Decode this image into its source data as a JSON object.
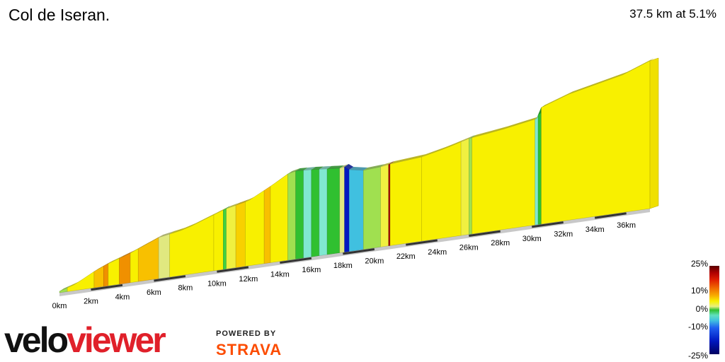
{
  "title": "Col de Iseran.",
  "summary": "37.5 km at 5.1%",
  "chart_data": {
    "type": "area",
    "xlabel": "",
    "ylabel": "",
    "x_unit": "km",
    "xlim": [
      0,
      37.5
    ],
    "x_tick_labels": [
      "0km",
      "2km",
      "4km",
      "6km",
      "8km",
      "10km",
      "12km",
      "14km",
      "16km",
      "18km",
      "20km",
      "22km",
      "24km",
      "26km",
      "28km",
      "30km",
      "32km",
      "34km",
      "36km"
    ],
    "x_tick_values": [
      0,
      2,
      4,
      6,
      8,
      10,
      12,
      14,
      16,
      18,
      20,
      22,
      24,
      26,
      28,
      30,
      32,
      34,
      36
    ],
    "segments": [
      {
        "start": 0.0,
        "end": 0.5,
        "gradient": 1
      },
      {
        "start": 0.5,
        "end": 2.2,
        "gradient": 6
      },
      {
        "start": 2.2,
        "end": 2.8,
        "gradient": 8
      },
      {
        "start": 2.8,
        "end": 3.1,
        "gradient": 10
      },
      {
        "start": 3.1,
        "end": 3.8,
        "gradient": 5
      },
      {
        "start": 3.8,
        "end": 4.5,
        "gradient": 9
      },
      {
        "start": 4.5,
        "end": 5.0,
        "gradient": 6
      },
      {
        "start": 5.0,
        "end": 6.3,
        "gradient": 8
      },
      {
        "start": 6.3,
        "end": 7.0,
        "gradient": 3
      },
      {
        "start": 7.0,
        "end": 9.8,
        "gradient": 5
      },
      {
        "start": 9.8,
        "end": 10.4,
        "gradient": 6
      },
      {
        "start": 10.4,
        "end": 10.6,
        "gradient": -1
      },
      {
        "start": 10.6,
        "end": 11.2,
        "gradient": 4
      },
      {
        "start": 11.2,
        "end": 11.8,
        "gradient": 7
      },
      {
        "start": 11.8,
        "end": 13.0,
        "gradient": 6
      },
      {
        "start": 13.0,
        "end": 13.4,
        "gradient": 8
      },
      {
        "start": 13.4,
        "end": 14.5,
        "gradient": 6
      },
      {
        "start": 14.5,
        "end": 15.0,
        "gradient": 2
      },
      {
        "start": 15.0,
        "end": 15.5,
        "gradient": 0
      },
      {
        "start": 15.5,
        "end": 16.0,
        "gradient": -4
      },
      {
        "start": 16.0,
        "end": 16.5,
        "gradient": 0
      },
      {
        "start": 16.5,
        "end": 17.0,
        "gradient": -4
      },
      {
        "start": 17.0,
        "end": 17.8,
        "gradient": 0
      },
      {
        "start": 17.8,
        "end": 18.1,
        "gradient": 3
      },
      {
        "start": 18.1,
        "end": 18.4,
        "gradient": -12
      },
      {
        "start": 18.4,
        "end": 19.3,
        "gradient": -5
      },
      {
        "start": 19.3,
        "end": 20.4,
        "gradient": 2
      },
      {
        "start": 20.4,
        "end": 20.9,
        "gradient": 4
      },
      {
        "start": 20.9,
        "end": 21.0,
        "gradient": 20
      },
      {
        "start": 21.0,
        "end": 23.0,
        "gradient": 5
      },
      {
        "start": 23.0,
        "end": 25.5,
        "gradient": 6
      },
      {
        "start": 25.5,
        "end": 26.0,
        "gradient": 4
      },
      {
        "start": 26.0,
        "end": 26.2,
        "gradient": 1
      },
      {
        "start": 26.2,
        "end": 30.2,
        "gradient": 6
      },
      {
        "start": 30.2,
        "end": 30.4,
        "gradient": -3
      },
      {
        "start": 30.4,
        "end": 30.6,
        "gradient": 0
      },
      {
        "start": 30.6,
        "end": 37.5,
        "gradient": 6
      }
    ],
    "gradient_scale_labels": [
      "25%",
      "10%",
      "0%",
      "-10%",
      "-25%"
    ]
  }
}
